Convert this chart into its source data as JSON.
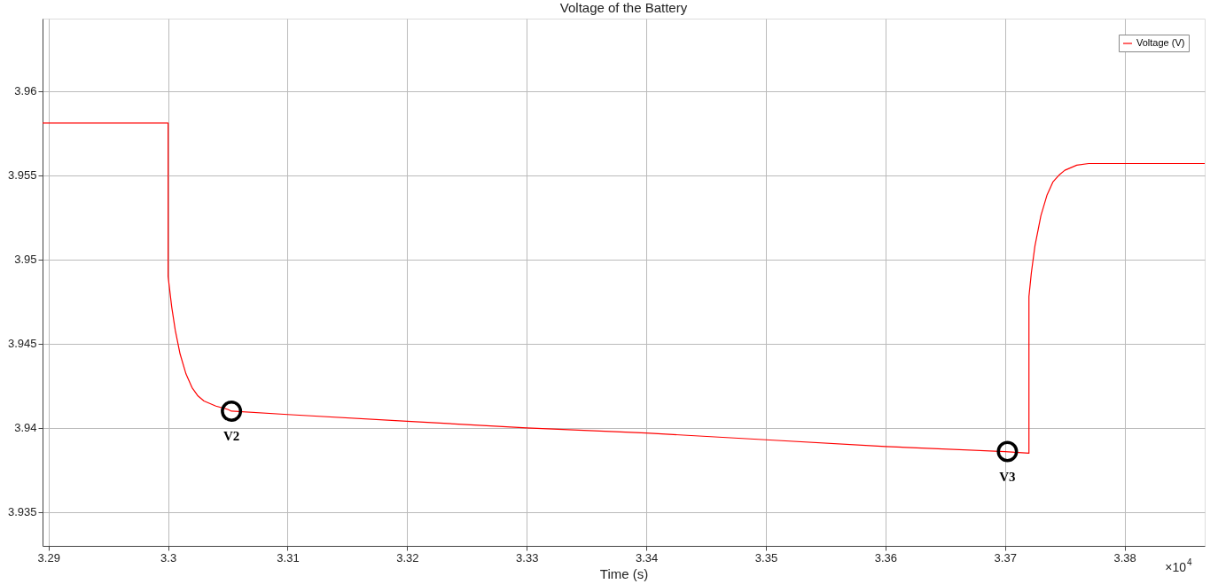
{
  "chart_data": {
    "type": "line",
    "title": "Voltage of the Battery",
    "xlabel": "Time (s)",
    "x": [
      3.2895,
      3.3,
      3.3,
      3.3003,
      3.3006,
      3.301,
      3.3015,
      3.302,
      3.3025,
      3.303,
      3.304,
      3.305,
      3.3053,
      3.31,
      3.32,
      3.33,
      3.34,
      3.35,
      3.36,
      3.37,
      3.372,
      3.372,
      3.3722,
      3.3725,
      3.373,
      3.3735,
      3.374,
      3.3745,
      3.375,
      3.376,
      3.377,
      3.3867
    ],
    "series": [
      {
        "name": "Voltage (V)",
        "color": "#ff0000",
        "values": [
          3.9581,
          3.9581,
          3.949,
          3.9472,
          3.9458,
          3.9444,
          3.9432,
          3.9424,
          3.9419,
          3.9416,
          3.9413,
          3.9411,
          3.941,
          3.9408,
          3.9404,
          3.94,
          3.9397,
          3.9393,
          3.9389,
          3.9386,
          3.9385,
          3.9478,
          3.9492,
          3.9508,
          3.9526,
          3.9538,
          3.9546,
          3.955,
          3.9553,
          3.9556,
          3.9557,
          3.9557
        ]
      }
    ],
    "xlim": [
      3.2895,
      3.3867
    ],
    "xticks": [
      3.29,
      3.3,
      3.31,
      3.32,
      3.33,
      3.34,
      3.35,
      3.36,
      3.37,
      3.38
    ],
    "ylim": [
      3.933,
      3.9643
    ],
    "yticks": [
      3.935,
      3.94,
      3.945,
      3.95,
      3.955,
      3.96
    ],
    "grid": true,
    "legend": "top right",
    "line_style": "solid",
    "marker": "none",
    "annotations": [
      {
        "text": "V2",
        "x": 3.3053,
        "y": 3.941
      },
      {
        "text": "V3",
        "x": 3.3702,
        "y": 3.9386
      },
      "×10$^{4}$"
    ]
  }
}
